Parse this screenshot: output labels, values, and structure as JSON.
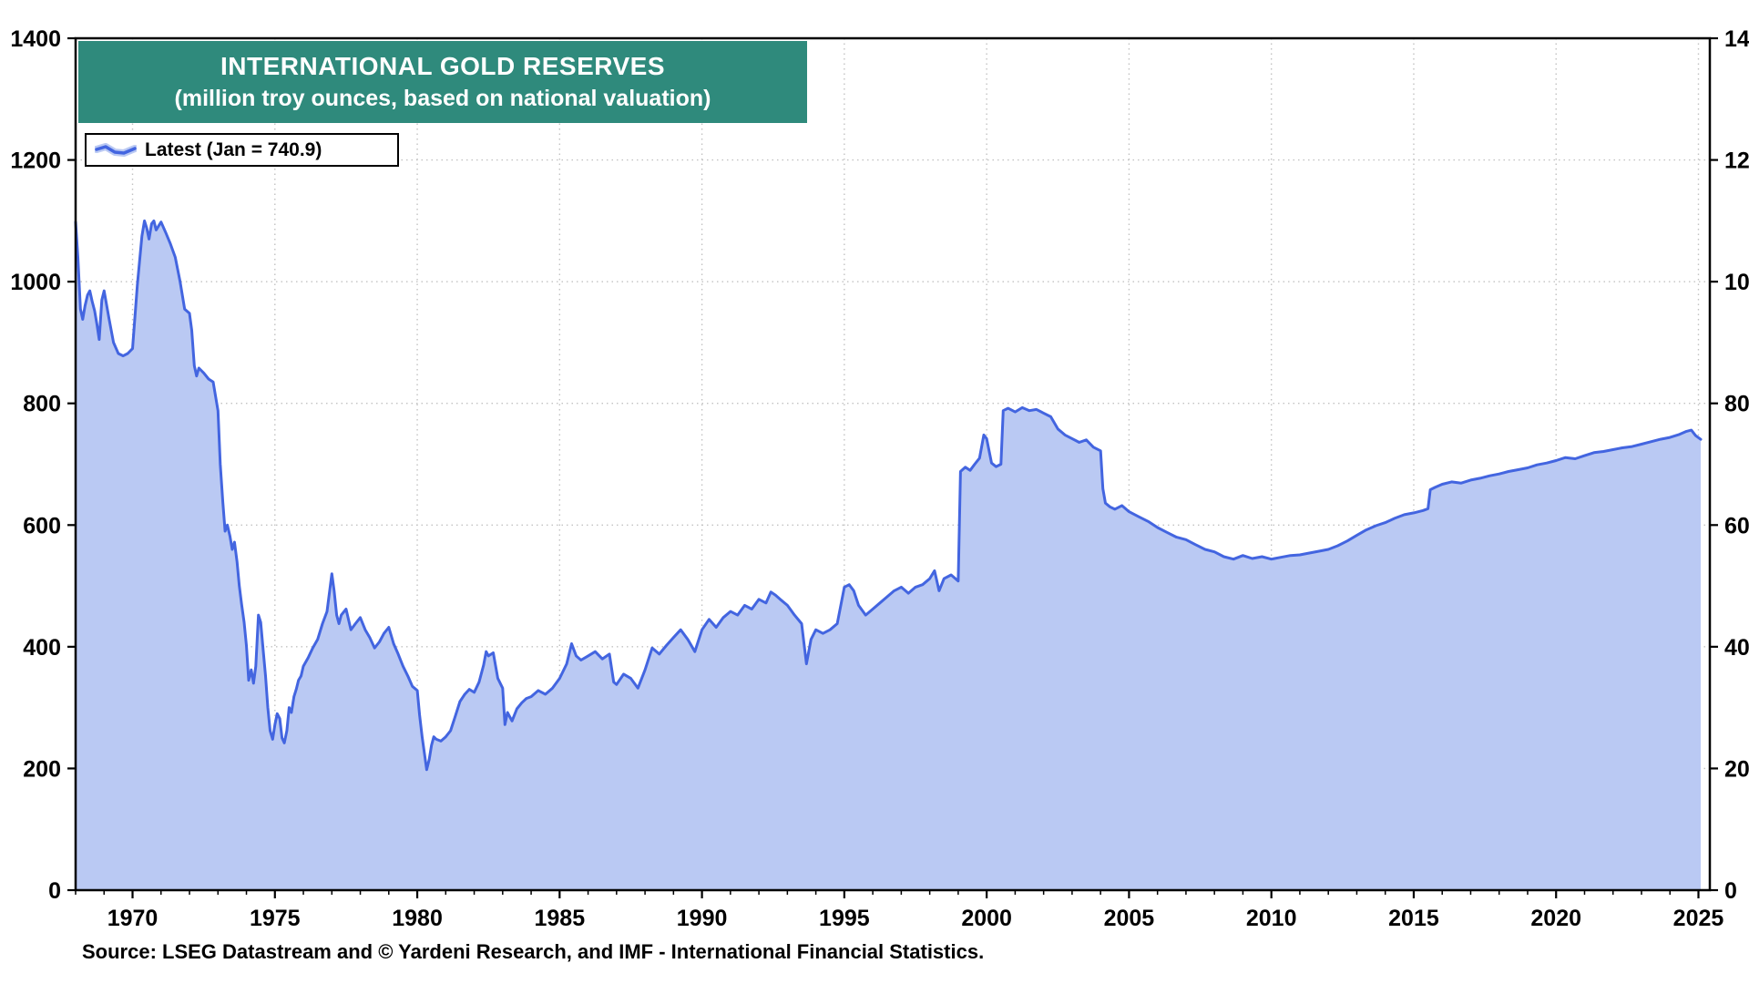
{
  "chart_data": {
    "type": "area",
    "title": "INTERNATIONAL GOLD RESERVES",
    "subtitle": "(million troy ounces, based on national valuation)",
    "legend_label": "Latest (Jan = 740.9)",
    "latest_value": 740.9,
    "source": "Source: LSEG Datastream and © Yardeni Research, and IMF - International Financial Statistics.",
    "xlim": [
      1968,
      2025.4
    ],
    "ylim": [
      0,
      1400
    ],
    "x_ticks": [
      1970,
      1975,
      1980,
      1985,
      1990,
      1995,
      2000,
      2005,
      2010,
      2015,
      2020,
      2025
    ],
    "y_ticks": [
      0,
      200,
      400,
      600,
      800,
      1000,
      1200,
      1400
    ],
    "grid": "dotted",
    "legend_position": "top-left",
    "icons": {
      "legend_icon": "line-sample"
    },
    "colors": {
      "line": "#4365e0",
      "fill": "#bac9f3",
      "title_bg": "#2f8a7c",
      "title_text": "#ffffff",
      "grid": "#c2c2c2",
      "frame": "#000000",
      "text": "#000000"
    },
    "xlabel": "",
    "ylabel": "",
    "points": [
      [
        1968.0,
        1098
      ],
      [
        1968.08,
        1040
      ],
      [
        1968.17,
        955
      ],
      [
        1968.25,
        938
      ],
      [
        1968.33,
        960
      ],
      [
        1968.42,
        978
      ],
      [
        1968.5,
        985
      ],
      [
        1968.58,
        968
      ],
      [
        1968.67,
        952
      ],
      [
        1968.75,
        930
      ],
      [
        1968.83,
        905
      ],
      [
        1968.92,
        970
      ],
      [
        1969.0,
        985
      ],
      [
        1969.17,
        940
      ],
      [
        1969.33,
        900
      ],
      [
        1969.5,
        882
      ],
      [
        1969.67,
        878
      ],
      [
        1969.83,
        882
      ],
      [
        1970.0,
        890
      ],
      [
        1970.17,
        995
      ],
      [
        1970.33,
        1075
      ],
      [
        1970.42,
        1100
      ],
      [
        1970.5,
        1088
      ],
      [
        1970.58,
        1070
      ],
      [
        1970.67,
        1095
      ],
      [
        1970.75,
        1100
      ],
      [
        1970.83,
        1085
      ],
      [
        1970.92,
        1092
      ],
      [
        1971.0,
        1098
      ],
      [
        1971.17,
        1080
      ],
      [
        1971.33,
        1062
      ],
      [
        1971.5,
        1040
      ],
      [
        1971.67,
        1000
      ],
      [
        1971.83,
        955
      ],
      [
        1972.0,
        948
      ],
      [
        1972.08,
        920
      ],
      [
        1972.17,
        862
      ],
      [
        1972.25,
        845
      ],
      [
        1972.33,
        858
      ],
      [
        1972.5,
        850
      ],
      [
        1972.67,
        840
      ],
      [
        1972.83,
        835
      ],
      [
        1973.0,
        788
      ],
      [
        1973.08,
        700
      ],
      [
        1973.17,
        638
      ],
      [
        1973.25,
        590
      ],
      [
        1973.33,
        600
      ],
      [
        1973.42,
        582
      ],
      [
        1973.5,
        560
      ],
      [
        1973.58,
        572
      ],
      [
        1973.67,
        540
      ],
      [
        1973.75,
        500
      ],
      [
        1973.83,
        470
      ],
      [
        1973.92,
        440
      ],
      [
        1974.0,
        402
      ],
      [
        1974.08,
        345
      ],
      [
        1974.17,
        362
      ],
      [
        1974.25,
        340
      ],
      [
        1974.33,
        368
      ],
      [
        1974.42,
        452
      ],
      [
        1974.5,
        440
      ],
      [
        1974.58,
        398
      ],
      [
        1974.67,
        352
      ],
      [
        1974.75,
        300
      ],
      [
        1974.83,
        262
      ],
      [
        1974.92,
        248
      ],
      [
        1975.0,
        272
      ],
      [
        1975.08,
        290
      ],
      [
        1975.17,
        282
      ],
      [
        1975.25,
        250
      ],
      [
        1975.33,
        242
      ],
      [
        1975.42,
        262
      ],
      [
        1975.5,
        300
      ],
      [
        1975.58,
        292
      ],
      [
        1975.67,
        318
      ],
      [
        1975.75,
        330
      ],
      [
        1975.83,
        345
      ],
      [
        1975.92,
        352
      ],
      [
        1976.0,
        368
      ],
      [
        1976.17,
        382
      ],
      [
        1976.33,
        398
      ],
      [
        1976.5,
        412
      ],
      [
        1976.67,
        438
      ],
      [
        1976.83,
        458
      ],
      [
        1977.0,
        520
      ],
      [
        1977.08,
        492
      ],
      [
        1977.17,
        452
      ],
      [
        1977.25,
        438
      ],
      [
        1977.33,
        452
      ],
      [
        1977.5,
        462
      ],
      [
        1977.67,
        428
      ],
      [
        1977.83,
        438
      ],
      [
        1978.0,
        448
      ],
      [
        1978.17,
        428
      ],
      [
        1978.33,
        415
      ],
      [
        1978.5,
        398
      ],
      [
        1978.67,
        408
      ],
      [
        1978.83,
        422
      ],
      [
        1979.0,
        432
      ],
      [
        1979.17,
        405
      ],
      [
        1979.33,
        388
      ],
      [
        1979.5,
        368
      ],
      [
        1979.67,
        352
      ],
      [
        1979.83,
        335
      ],
      [
        1980.0,
        328
      ],
      [
        1980.08,
        288
      ],
      [
        1980.17,
        252
      ],
      [
        1980.25,
        225
      ],
      [
        1980.33,
        198
      ],
      [
        1980.42,
        215
      ],
      [
        1980.5,
        238
      ],
      [
        1980.58,
        252
      ],
      [
        1980.67,
        248
      ],
      [
        1980.83,
        245
      ],
      [
        1981.0,
        252
      ],
      [
        1981.17,
        262
      ],
      [
        1981.33,
        285
      ],
      [
        1981.5,
        310
      ],
      [
        1981.67,
        322
      ],
      [
        1981.83,
        330
      ],
      [
        1982.0,
        325
      ],
      [
        1982.17,
        342
      ],
      [
        1982.33,
        370
      ],
      [
        1982.42,
        392
      ],
      [
        1982.5,
        385
      ],
      [
        1982.67,
        390
      ],
      [
        1982.83,
        348
      ],
      [
        1983.0,
        332
      ],
      [
        1983.08,
        272
      ],
      [
        1983.17,
        292
      ],
      [
        1983.33,
        278
      ],
      [
        1983.5,
        298
      ],
      [
        1983.67,
        308
      ],
      [
        1983.83,
        315
      ],
      [
        1984.0,
        318
      ],
      [
        1984.25,
        328
      ],
      [
        1984.5,
        322
      ],
      [
        1984.75,
        332
      ],
      [
        1985.0,
        348
      ],
      [
        1985.25,
        372
      ],
      [
        1985.42,
        405
      ],
      [
        1985.58,
        385
      ],
      [
        1985.75,
        378
      ],
      [
        1986.0,
        385
      ],
      [
        1986.25,
        392
      ],
      [
        1986.5,
        380
      ],
      [
        1986.75,
        388
      ],
      [
        1986.9,
        342
      ],
      [
        1987.0,
        338
      ],
      [
        1987.25,
        355
      ],
      [
        1987.5,
        348
      ],
      [
        1987.75,
        332
      ],
      [
        1988.0,
        362
      ],
      [
        1988.25,
        398
      ],
      [
        1988.5,
        388
      ],
      [
        1988.75,
        402
      ],
      [
        1989.0,
        415
      ],
      [
        1989.25,
        428
      ],
      [
        1989.5,
        412
      ],
      [
        1989.75,
        392
      ],
      [
        1990.0,
        428
      ],
      [
        1990.25,
        445
      ],
      [
        1990.5,
        432
      ],
      [
        1990.75,
        448
      ],
      [
        1991.0,
        458
      ],
      [
        1991.25,
        452
      ],
      [
        1991.5,
        468
      ],
      [
        1991.75,
        462
      ],
      [
        1992.0,
        478
      ],
      [
        1992.25,
        472
      ],
      [
        1992.42,
        490
      ],
      [
        1992.58,
        485
      ],
      [
        1992.75,
        478
      ],
      [
        1993.0,
        468
      ],
      [
        1993.25,
        452
      ],
      [
        1993.5,
        438
      ],
      [
        1993.67,
        372
      ],
      [
        1993.83,
        412
      ],
      [
        1994.0,
        428
      ],
      [
        1994.25,
        422
      ],
      [
        1994.5,
        428
      ],
      [
        1994.75,
        438
      ],
      [
        1995.0,
        498
      ],
      [
        1995.17,
        502
      ],
      [
        1995.33,
        492
      ],
      [
        1995.5,
        468
      ],
      [
        1995.75,
        452
      ],
      [
        1996.0,
        462
      ],
      [
        1996.25,
        472
      ],
      [
        1996.5,
        482
      ],
      [
        1996.75,
        492
      ],
      [
        1997.0,
        498
      ],
      [
        1997.25,
        488
      ],
      [
        1997.5,
        498
      ],
      [
        1997.75,
        502
      ],
      [
        1998.0,
        512
      ],
      [
        1998.17,
        525
      ],
      [
        1998.33,
        492
      ],
      [
        1998.5,
        512
      ],
      [
        1998.75,
        518
      ],
      [
        1999.0,
        508
      ],
      [
        1999.08,
        688
      ],
      [
        1999.25,
        695
      ],
      [
        1999.42,
        690
      ],
      [
        1999.58,
        700
      ],
      [
        1999.75,
        710
      ],
      [
        1999.9,
        748
      ],
      [
        2000.0,
        742
      ],
      [
        2000.17,
        702
      ],
      [
        2000.33,
        696
      ],
      [
        2000.5,
        700
      ],
      [
        2000.58,
        788
      ],
      [
        2000.75,
        792
      ],
      [
        2001.0,
        786
      ],
      [
        2001.25,
        793
      ],
      [
        2001.5,
        788
      ],
      [
        2001.75,
        790
      ],
      [
        2002.0,
        784
      ],
      [
        2002.25,
        778
      ],
      [
        2002.5,
        758
      ],
      [
        2002.75,
        748
      ],
      [
        2003.0,
        742
      ],
      [
        2003.25,
        736
      ],
      [
        2003.5,
        740
      ],
      [
        2003.75,
        728
      ],
      [
        2004.0,
        722
      ],
      [
        2004.08,
        660
      ],
      [
        2004.17,
        636
      ],
      [
        2004.33,
        630
      ],
      [
        2004.5,
        626
      ],
      [
        2004.75,
        632
      ],
      [
        2005.0,
        622
      ],
      [
        2005.33,
        614
      ],
      [
        2005.67,
        606
      ],
      [
        2006.0,
        596
      ],
      [
        2006.33,
        588
      ],
      [
        2006.67,
        580
      ],
      [
        2007.0,
        576
      ],
      [
        2007.33,
        568
      ],
      [
        2007.67,
        560
      ],
      [
        2008.0,
        556
      ],
      [
        2008.33,
        548
      ],
      [
        2008.67,
        544
      ],
      [
        2009.0,
        550
      ],
      [
        2009.33,
        545
      ],
      [
        2009.67,
        548
      ],
      [
        2010.0,
        544
      ],
      [
        2010.33,
        547
      ],
      [
        2010.67,
        550
      ],
      [
        2011.0,
        551
      ],
      [
        2011.33,
        554
      ],
      [
        2011.67,
        557
      ],
      [
        2012.0,
        560
      ],
      [
        2012.33,
        566
      ],
      [
        2012.67,
        574
      ],
      [
        2013.0,
        583
      ],
      [
        2013.33,
        592
      ],
      [
        2013.67,
        599
      ],
      [
        2014.0,
        604
      ],
      [
        2014.33,
        611
      ],
      [
        2014.67,
        617
      ],
      [
        2015.0,
        620
      ],
      [
        2015.33,
        624
      ],
      [
        2015.5,
        627
      ],
      [
        2015.58,
        658
      ],
      [
        2015.75,
        662
      ],
      [
        2016.0,
        667
      ],
      [
        2016.33,
        671
      ],
      [
        2016.67,
        669
      ],
      [
        2017.0,
        674
      ],
      [
        2017.33,
        677
      ],
      [
        2017.67,
        681
      ],
      [
        2018.0,
        684
      ],
      [
        2018.33,
        688
      ],
      [
        2018.67,
        691
      ],
      [
        2019.0,
        694
      ],
      [
        2019.33,
        699
      ],
      [
        2019.67,
        702
      ],
      [
        2020.0,
        706
      ],
      [
        2020.33,
        711
      ],
      [
        2020.67,
        709
      ],
      [
        2021.0,
        714
      ],
      [
        2021.33,
        719
      ],
      [
        2021.67,
        721
      ],
      [
        2022.0,
        724
      ],
      [
        2022.33,
        727
      ],
      [
        2022.67,
        729
      ],
      [
        2023.0,
        733
      ],
      [
        2023.33,
        737
      ],
      [
        2023.67,
        741
      ],
      [
        2024.0,
        744
      ],
      [
        2024.33,
        749
      ],
      [
        2024.58,
        754
      ],
      [
        2024.75,
        756
      ],
      [
        2024.9,
        747
      ],
      [
        2025.08,
        740.9
      ]
    ]
  }
}
